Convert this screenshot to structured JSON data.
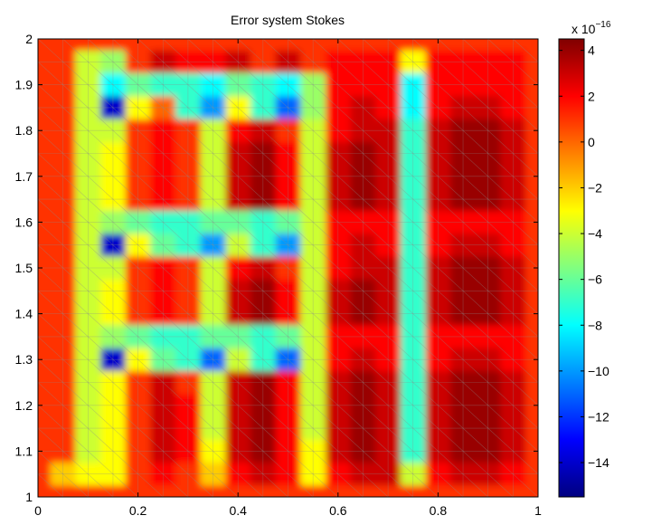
{
  "chart_data": {
    "type": "heatmap",
    "title": "Error system Stokes",
    "xlim": [
      0,
      1
    ],
    "ylim": [
      1,
      2
    ],
    "xticks": [
      {
        "value": 0,
        "label": "0"
      },
      {
        "value": 0.2,
        "label": "0.2"
      },
      {
        "value": 0.4,
        "label": "0.4"
      },
      {
        "value": 0.6,
        "label": "0.6"
      },
      {
        "value": 0.8,
        "label": "0.8"
      },
      {
        "value": 1,
        "label": "1"
      }
    ],
    "yticks": [
      {
        "value": 1,
        "label": "1"
      },
      {
        "value": 1.1,
        "label": "1.1"
      },
      {
        "value": 1.2,
        "label": "1.2"
      },
      {
        "value": 1.3,
        "label": "1.3"
      },
      {
        "value": 1.4,
        "label": "1.4"
      },
      {
        "value": 1.5,
        "label": "1.5"
      },
      {
        "value": 1.6,
        "label": "1.6"
      },
      {
        "value": 1.7,
        "label": "1.7"
      },
      {
        "value": 1.8,
        "label": "1.8"
      },
      {
        "value": 1.9,
        "label": "1.9"
      },
      {
        "value": 2,
        "label": "2"
      }
    ],
    "colorbar": {
      "multiplier": "x 10",
      "exponent": "−16",
      "range": [
        -15.5,
        4.5
      ],
      "colormap": "jet",
      "ticks": [
        {
          "value": 4,
          "label": "4"
        },
        {
          "value": 2,
          "label": "2"
        },
        {
          "value": 0,
          "label": "0"
        },
        {
          "value": -2,
          "label": "−2"
        },
        {
          "value": -4,
          "label": "−4"
        },
        {
          "value": -6,
          "label": "−6"
        },
        {
          "value": -8,
          "label": "−8"
        },
        {
          "value": -10,
          "label": "−10"
        },
        {
          "value": -12,
          "label": "−12"
        },
        {
          "value": -14,
          "label": "−14"
        }
      ]
    },
    "grid_x": [
      0,
      0.05,
      0.1,
      0.15,
      0.2,
      0.25,
      0.3,
      0.35,
      0.4,
      0.45,
      0.5,
      0.55,
      0.6,
      0.65,
      0.7,
      0.75,
      0.8,
      0.85,
      0.9,
      0.95,
      1
    ],
    "grid_y": [
      2,
      1.95,
      1.9,
      1.85,
      1.8,
      1.75,
      1.7,
      1.65,
      1.6,
      1.55,
      1.5,
      1.45,
      1.4,
      1.35,
      1.3,
      1.25,
      1.2,
      1.15,
      1.1,
      1.05,
      1
    ],
    "values": [
      [
        1,
        1,
        1,
        1,
        1,
        1,
        1,
        1,
        1,
        1,
        1,
        1,
        1,
        1,
        1,
        1,
        1,
        1,
        1,
        1,
        1
      ],
      [
        1,
        1,
        -4,
        -5,
        1,
        3,
        2,
        2,
        3,
        1,
        3,
        1,
        2,
        2,
        2,
        -3,
        2,
        2,
        2,
        2,
        1
      ],
      [
        1,
        1,
        -4,
        -8,
        -6,
        -7,
        -7,
        -8,
        -6,
        -7,
        -8,
        -5,
        2,
        2,
        2,
        -8,
        2,
        2,
        2,
        2,
        1
      ],
      [
        1,
        1,
        -4,
        -14,
        -3,
        0,
        -7,
        -10,
        -3,
        -7,
        -11,
        -5,
        2,
        3,
        2,
        -8,
        2,
        3,
        3,
        2,
        1
      ],
      [
        1,
        1,
        -4,
        -4,
        1,
        2,
        1,
        -4,
        2,
        3,
        1,
        -4,
        2,
        3,
        3,
        -7,
        3,
        4,
        4,
        3,
        1
      ],
      [
        1,
        1,
        -4,
        -3,
        1,
        2,
        1,
        -4,
        3,
        4,
        2,
        -4,
        3,
        4,
        3,
        -7,
        3,
        4,
        4,
        3,
        1
      ],
      [
        1,
        1,
        -4,
        -3,
        1,
        2,
        1,
        -4,
        3,
        4,
        2,
        -4,
        3,
        4,
        3,
        -7,
        3,
        4,
        4,
        3,
        1
      ],
      [
        1,
        1,
        -4,
        -3,
        1,
        2,
        1,
        -4,
        3,
        4,
        2,
        -4,
        3,
        4,
        3,
        -7,
        3,
        4,
        4,
        3,
        1
      ],
      [
        1,
        1,
        -4,
        -5,
        -6,
        -7,
        -7,
        -6,
        -6,
        -7,
        -6,
        -4,
        2,
        2,
        2,
        -7,
        2,
        2,
        2,
        2,
        1
      ],
      [
        1,
        1,
        -4,
        -14,
        -3,
        -6,
        -7,
        -10,
        -4,
        -7,
        -10,
        -4,
        2,
        3,
        2,
        -7,
        2,
        3,
        3,
        2,
        1
      ],
      [
        1,
        1,
        -4,
        -4,
        1,
        2,
        1,
        -4,
        2,
        3,
        1,
        -4,
        2,
        3,
        3,
        -7,
        3,
        4,
        4,
        3,
        1
      ],
      [
        1,
        1,
        -4,
        -3,
        1,
        2,
        1,
        -4,
        3,
        4,
        2,
        -4,
        3,
        4,
        3,
        -7,
        3,
        4,
        4,
        3,
        1
      ],
      [
        1,
        1,
        -4,
        -3,
        1,
        2,
        1,
        -4,
        3,
        4,
        2,
        -4,
        3,
        4,
        3,
        -7,
        3,
        4,
        4,
        3,
        1
      ],
      [
        1,
        1,
        -4,
        -5,
        -6,
        -7,
        -7,
        -6,
        -6,
        -7,
        -6,
        -4,
        2,
        2,
        2,
        -7,
        2,
        2,
        2,
        2,
        1
      ],
      [
        1,
        1,
        -4,
        -14,
        -3,
        -6,
        -7,
        -11,
        -4,
        -7,
        -11,
        -4,
        2,
        3,
        2,
        -7,
        2,
        3,
        3,
        2,
        1
      ],
      [
        1,
        1,
        -4,
        -3,
        1,
        3,
        1,
        -4,
        3,
        4,
        2,
        -4,
        3,
        4,
        3,
        -7,
        3,
        4,
        4,
        3,
        1
      ],
      [
        1,
        1,
        -4,
        -3,
        1,
        3,
        2,
        -4,
        3,
        4,
        2,
        -4,
        3,
        4,
        3,
        -7,
        3,
        4,
        4,
        3,
        1
      ],
      [
        1,
        1,
        -4,
        -3,
        1,
        3,
        2,
        -4,
        3,
        4,
        2,
        -4,
        3,
        4,
        3,
        -7,
        3,
        4,
        4,
        3,
        1
      ],
      [
        1,
        1,
        -4,
        -3,
        1,
        3,
        2,
        -3,
        3,
        4,
        2,
        -3,
        3,
        4,
        3,
        -7,
        3,
        4,
        4,
        3,
        1
      ],
      [
        1,
        -2,
        -3,
        -3,
        1,
        2,
        1,
        -2,
        2,
        3,
        2,
        -3,
        2,
        3,
        3,
        -4,
        2,
        3,
        3,
        2,
        1
      ],
      [
        1,
        1,
        1,
        1,
        1,
        1,
        1,
        1,
        1,
        1,
        1,
        1,
        1,
        1,
        1,
        1,
        1,
        1,
        1,
        1,
        1
      ]
    ]
  }
}
